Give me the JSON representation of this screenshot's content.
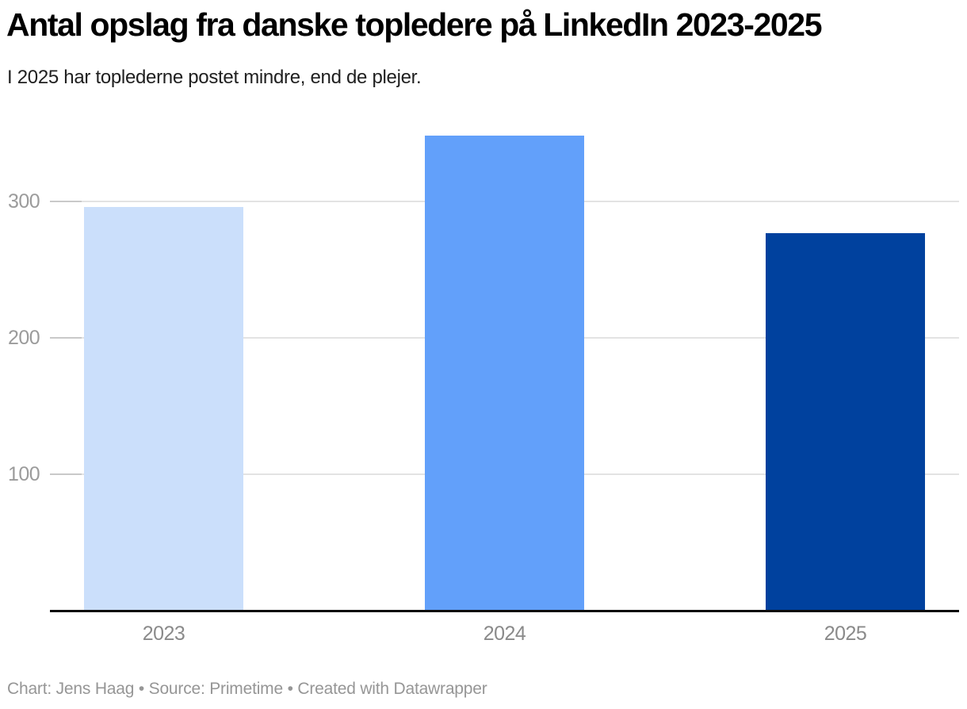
{
  "header": {
    "title": "Antal opslag fra danske topledere på LinkedIn 2023-2025",
    "subtitle": "I 2025 har toplederne postet mindre, end de plejer."
  },
  "footer": {
    "text": "Chart: Jens Haag • Source: Primetime • Created with Datawrapper"
  },
  "chart_data": {
    "type": "bar",
    "title": "Antal opslag fra danske topledere på LinkedIn 2023-2025",
    "subtitle": "I 2025 har toplederne postet mindre, end de plejer.",
    "categories": [
      "2023",
      "2024",
      "2025"
    ],
    "values": [
      296,
      348,
      277
    ],
    "bar_colors": [
      "#cbdffb",
      "#62a0fa",
      "#00419e"
    ],
    "xlabel": "",
    "ylabel": "",
    "y_ticks": [
      100,
      200,
      300
    ],
    "ylim": [
      0,
      366
    ],
    "grid": true,
    "legend": "none",
    "colors": {
      "gridline": "#e3e3e3",
      "tick": "#c9c9c9",
      "baseline": "#0b0b0b",
      "y_label_text": "#9b9b9b",
      "x_label_text": "#8a8a8a",
      "footer_text": "#969696"
    }
  }
}
